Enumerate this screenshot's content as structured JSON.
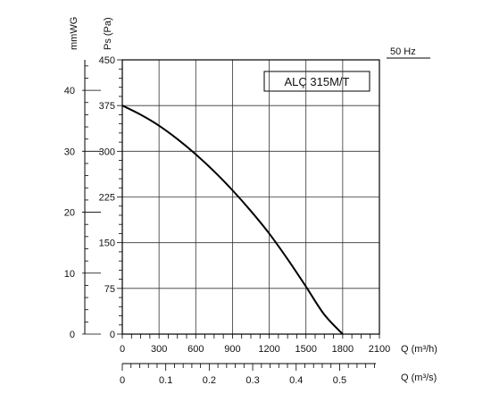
{
  "chart_data": {
    "type": "line",
    "title": "ALÇ 315M/T",
    "frequency_label": "50 Hz",
    "xlabel": "Q (m³/h)",
    "ylabel": "Ps (Pa)",
    "secondary_y_label": "mmWG",
    "secondary_x_label": "Q (m³/s)",
    "xlim": [
      0,
      2100
    ],
    "ylim": [
      0,
      450
    ],
    "x_ticks": [
      0,
      300,
      600,
      900,
      1200,
      1500,
      1800,
      2100
    ],
    "y_ticks": [
      0,
      75,
      150,
      225,
      300,
      375,
      450
    ],
    "secondary_y_ticks": [
      0,
      10,
      20,
      30,
      40
    ],
    "secondary_x_ticks": [
      "0",
      "0.1",
      "0.2",
      "0.3",
      "0.4",
      "0.5"
    ],
    "grid": true,
    "series": [
      {
        "x": [
          0,
          150,
          300,
          450,
          600,
          750,
          900,
          1050,
          1200,
          1350,
          1500,
          1650,
          1800
        ],
        "y": [
          375,
          360,
          342,
          320,
          295,
          267,
          236,
          202,
          165,
          123,
          78,
          32,
          0
        ],
        "color": "#000000"
      }
    ]
  }
}
